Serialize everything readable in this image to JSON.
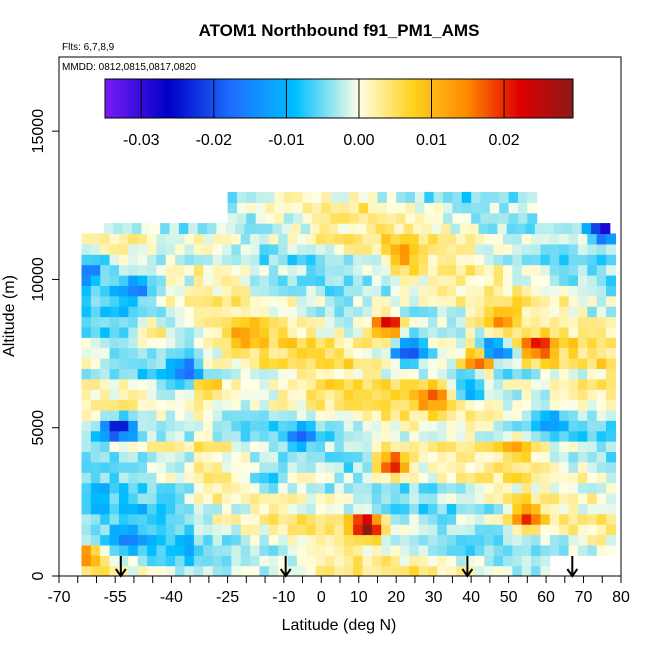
{
  "chart_data": {
    "type": "heatmap",
    "title": "ATOM1 Northbound f91_PM1_AMS",
    "subtitle_flights": "Flts: 6,7,8,9",
    "subtitle_dates": "MMDD: 0812,0815,0817,0820",
    "xlabel": "Latitude (deg N)",
    "ylabel": "Altitude (m)",
    "xlim": [
      -70,
      80
    ],
    "ylim": [
      0,
      17500
    ],
    "x_ticks": [
      -70,
      -55,
      -40,
      -25,
      -10,
      0,
      10,
      20,
      30,
      40,
      50,
      60,
      70,
      80
    ],
    "x_tick_labels": [
      "-70",
      "-55",
      "-40",
      "-25",
      "-10",
      "0",
      "10",
      "20",
      "30",
      "40",
      "50",
      "60",
      "70",
      "80"
    ],
    "x_minor_step": 5,
    "y_ticks": [
      0,
      5000,
      10000,
      15000
    ],
    "y_tick_labels": [
      "0",
      "5000",
      "10000",
      "15000"
    ],
    "colorbar": {
      "range": [
        -0.035,
        0.0295
      ],
      "ticks": [
        -0.03,
        -0.02,
        -0.01,
        0.0,
        0.01,
        0.02
      ],
      "tick_labels": [
        "-0.03",
        "-0.02",
        "-0.01",
        "0.00",
        "0.01",
        "0.02"
      ],
      "colors": [
        "#7a1cf5",
        "#0000c8",
        "#1f6fff",
        "#00bfff",
        "#ffffe6",
        "#ffd21f",
        "#ff8c00",
        "#e00000",
        "#8b1a1a"
      ]
    },
    "flight_markers_lat": [
      -53.5,
      -9.5,
      39,
      67
    ],
    "grid": false,
    "legend": "colorbar-top-inside",
    "coverage": {
      "lat_range": [
        -64,
        77
      ],
      "alt_range": [
        0,
        12900
      ],
      "layer_thickness": 350
    },
    "anomalies": [
      {
        "lat": 18,
        "alt": 8500,
        "value": 0.027
      },
      {
        "lat": 19,
        "alt": 3800,
        "value": 0.024
      },
      {
        "lat": 43,
        "alt": 7300,
        "value": 0.026
      },
      {
        "lat": 12,
        "alt": 1700,
        "value": 0.028
      },
      {
        "lat": 55,
        "alt": 2000,
        "value": 0.017
      },
      {
        "lat": 58,
        "alt": 7700,
        "value": 0.018
      },
      {
        "lat": -62,
        "alt": 700,
        "value": 0.016
      },
      {
        "lat": 30,
        "alt": 6100,
        "value": 0.014
      },
      {
        "lat": 48,
        "alt": 8700,
        "value": 0.013
      },
      {
        "lat": -45,
        "alt": 8200,
        "value": 0.012
      },
      {
        "lat": -20,
        "alt": 8200,
        "value": 0.011
      },
      {
        "lat": 52,
        "alt": 4300,
        "value": 0.012
      },
      {
        "lat": -30,
        "alt": 6400,
        "value": 0.01
      },
      {
        "lat": 22,
        "alt": 10800,
        "value": 0.011
      },
      {
        "lat": 46,
        "alt": 7600,
        "value": -0.028
      },
      {
        "lat": 23,
        "alt": 7600,
        "value": -0.02
      },
      {
        "lat": -54,
        "alt": 5000,
        "value": -0.022
      },
      {
        "lat": 76,
        "alt": 11700,
        "value": -0.03
      },
      {
        "lat": -50,
        "alt": 9700,
        "value": -0.015
      },
      {
        "lat": -52,
        "alt": 1300,
        "value": -0.012
      },
      {
        "lat": -36,
        "alt": 7000,
        "value": -0.013
      },
      {
        "lat": -62,
        "alt": 10300,
        "value": -0.012
      },
      {
        "lat": 60,
        "alt": 5200,
        "value": -0.011
      },
      {
        "lat": -5,
        "alt": 4700,
        "value": -0.01
      },
      {
        "lat": 40,
        "alt": 6300,
        "value": -0.011
      },
      {
        "lat": -15,
        "alt": 3300,
        "value": -0.012
      }
    ]
  }
}
